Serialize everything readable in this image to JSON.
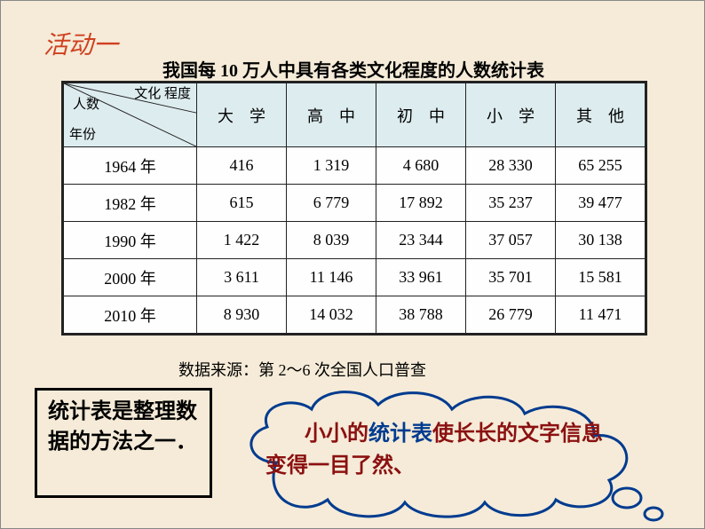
{
  "activity_label": "活动一",
  "table": {
    "title": "我国每 10 万人中具有各类文化程度的人数统计表",
    "corner": {
      "top": "文化\n程度",
      "mid": "人数",
      "bottom": "年份"
    },
    "columns": [
      "大　学",
      "高　中",
      "初　中",
      "小　学",
      "其　他"
    ],
    "rows": [
      {
        "year": "1964 年",
        "values": [
          "416",
          "1 319",
          "4 680",
          "28 330",
          "65 255"
        ]
      },
      {
        "year": "1982 年",
        "values": [
          "615",
          "6 779",
          "17 892",
          "35 237",
          "39 477"
        ]
      },
      {
        "year": "1990 年",
        "values": [
          "1 422",
          "8 039",
          "23 344",
          "37 057",
          "30 138"
        ]
      },
      {
        "year": "2000 年",
        "values": [
          "3 611",
          "11 146",
          "33 961",
          "35 701",
          "15 581"
        ]
      },
      {
        "year": "2010 年",
        "values": [
          "8 930",
          "14 032",
          "38 788",
          "26 779",
          "11 471"
        ]
      }
    ],
    "header_bg": "#ddecef",
    "border_color": "#222222",
    "font_size": 18
  },
  "data_source": "数据来源：第 2～6 次全国人口普查",
  "note_box": "统计表是整理数据的方法之一．",
  "cloud_text": {
    "part1": "小小的",
    "part2_accent": "统计表",
    "part3": "使长长的文字信息变得一目了然、"
  },
  "colors": {
    "page_bg": "#f5ebd8",
    "activity": "#d04020",
    "cloud_stroke": "#003b8f",
    "cloud_text": "#8b1010",
    "accent_text": "#003b8f"
  }
}
